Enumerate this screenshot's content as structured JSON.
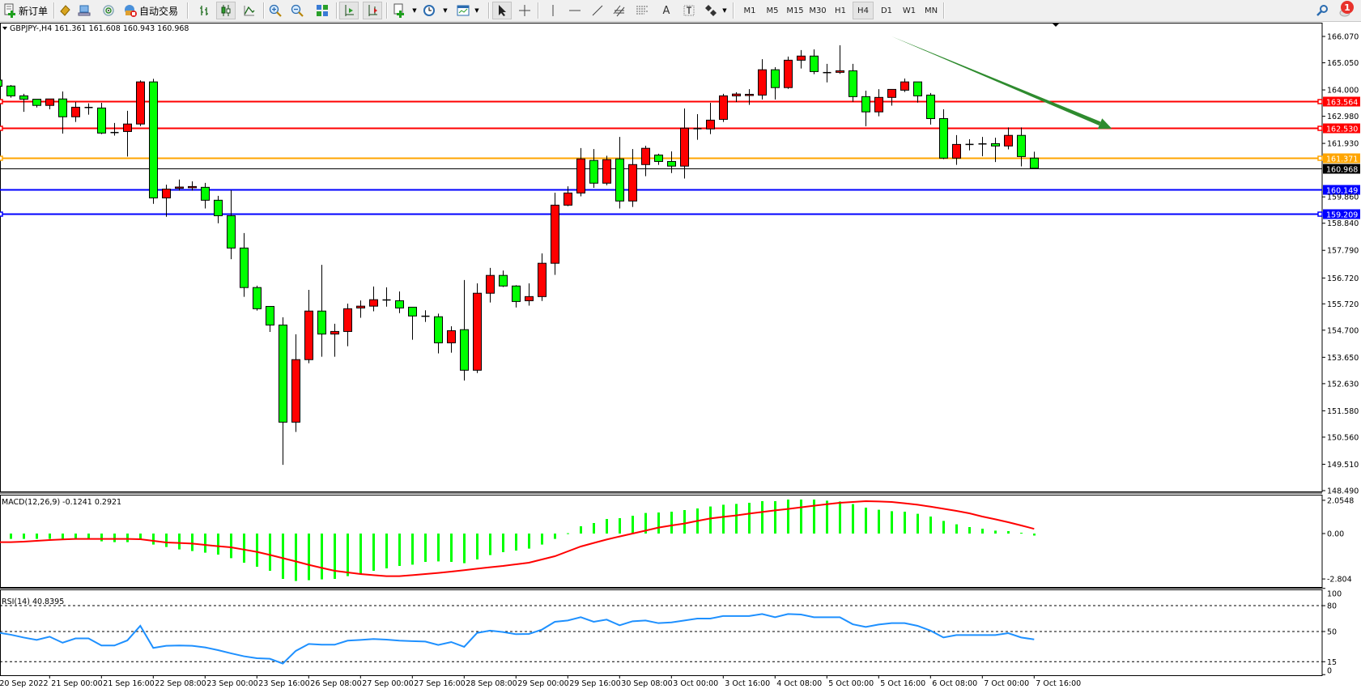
{
  "toolbar": {
    "new_order_label": "新订单",
    "autotrade_label": "自动交易",
    "icons": [
      "new-order-icon",
      "market-watch-icon",
      "data-window-icon",
      "navigator-icon",
      "autotrade-icon",
      "bar-chart-icon",
      "candlestick-icon",
      "line-chart-icon",
      "zoom-in-icon",
      "zoom-out-icon",
      "tile-windows-icon",
      "auto-scroll-icon",
      "chart-shift-icon",
      "indicators-icon",
      "periods-icon",
      "templates-icon",
      "cursor-icon",
      "crosshair-icon",
      "vertical-line-icon",
      "horizontal-line-icon",
      "trendline-icon",
      "equidistant-channel-icon",
      "fibonacci-icon",
      "text-icon",
      "text-label-icon",
      "arrows-icon",
      "search-icon",
      "notification-icon"
    ],
    "timeframes": [
      "M1",
      "M5",
      "M15",
      "M30",
      "H1",
      "H4",
      "D1",
      "W1",
      "MN"
    ],
    "active_timeframe": "H4",
    "notification_count": "1"
  },
  "chart": {
    "header": "GBPJPY-,H4  161.361 161.608 160.943 160.968",
    "symbol": "GBPJPY-",
    "timeframe": "H4",
    "ohlc": {
      "open": "161.361",
      "high": "161.608",
      "low": "160.943",
      "close": "160.968"
    }
  },
  "chart_data": [
    {
      "type": "candlestick",
      "title": "GBPJPY-,H4",
      "ylim": [
        148.49,
        166.07
      ],
      "price_ticks": [
        "166.070",
        "165.050",
        "164.000",
        "162.980",
        "161.930",
        "159.860",
        "158.840",
        "157.790",
        "156.720",
        "155.720",
        "154.700",
        "153.650",
        "152.630",
        "151.580",
        "150.560",
        "149.510",
        "148.490"
      ],
      "up_color": "#ff0000",
      "down_color": "#00ff00",
      "candles_ohlc": [
        [
          164.38,
          164.45,
          164.1,
          164.14
        ],
        [
          164.15,
          164.19,
          163.7,
          163.77
        ],
        [
          163.77,
          163.85,
          163.15,
          163.64
        ],
        [
          163.64,
          163.64,
          163.32,
          163.4
        ],
        [
          163.4,
          163.65,
          163.25,
          163.65
        ],
        [
          163.65,
          163.94,
          162.31,
          162.96
        ],
        [
          162.96,
          163.53,
          162.76,
          163.33
        ],
        [
          163.32,
          163.48,
          163.04,
          163.32
        ],
        [
          163.3,
          163.5,
          162.29,
          162.33
        ],
        [
          162.35,
          162.72,
          162.23,
          162.35
        ],
        [
          162.39,
          163.19,
          161.42,
          162.68
        ],
        [
          162.68,
          164.37,
          162.6,
          164.31
        ],
        [
          164.31,
          164.43,
          159.59,
          159.82
        ],
        [
          159.82,
          160.33,
          159.09,
          160.16
        ],
        [
          160.22,
          160.53,
          160.1,
          160.24
        ],
        [
          160.24,
          160.46,
          160.1,
          160.26
        ],
        [
          160.23,
          160.4,
          159.41,
          159.73
        ],
        [
          159.73,
          159.9,
          158.84,
          159.13
        ],
        [
          159.13,
          160.12,
          157.45,
          157.88
        ],
        [
          157.88,
          158.46,
          155.99,
          156.35
        ],
        [
          156.35,
          156.42,
          155.46,
          155.53
        ],
        [
          155.62,
          155.62,
          154.63,
          154.9
        ],
        [
          154.9,
          155.2,
          149.49,
          151.14
        ],
        [
          151.14,
          154.54,
          150.76,
          153.56
        ],
        [
          153.56,
          156.26,
          153.42,
          155.44
        ],
        [
          155.44,
          157.23,
          153.67,
          154.55
        ],
        [
          154.55,
          154.95,
          153.67,
          154.65
        ],
        [
          154.65,
          155.73,
          154.08,
          155.53
        ],
        [
          155.56,
          155.85,
          155.18,
          155.63
        ],
        [
          155.63,
          156.39,
          155.43,
          155.88
        ],
        [
          155.87,
          156.36,
          155.61,
          155.87
        ],
        [
          155.84,
          156.2,
          155.36,
          155.56
        ],
        [
          155.59,
          155.59,
          154.33,
          155.25
        ],
        [
          155.24,
          155.47,
          155.02,
          155.24
        ],
        [
          155.22,
          155.34,
          153.8,
          154.21
        ],
        [
          154.21,
          154.85,
          153.83,
          154.68
        ],
        [
          154.72,
          156.64,
          152.75,
          153.15
        ],
        [
          153.15,
          156.51,
          153.04,
          156.13
        ],
        [
          156.13,
          157.11,
          155.77,
          156.82
        ],
        [
          156.82,
          157.01,
          156.37,
          156.41
        ],
        [
          156.41,
          156.44,
          155.58,
          155.81
        ],
        [
          155.84,
          156.51,
          155.65,
          156.0
        ],
        [
          156.0,
          157.67,
          155.83,
          157.29
        ],
        [
          157.29,
          160.02,
          156.84,
          159.54
        ],
        [
          159.54,
          160.27,
          159.5,
          160.01
        ],
        [
          160.01,
          161.75,
          159.88,
          161.33
        ],
        [
          161.27,
          161.71,
          160.21,
          160.39
        ],
        [
          160.39,
          161.45,
          160.31,
          161.3
        ],
        [
          161.33,
          162.18,
          159.41,
          159.7
        ],
        [
          159.7,
          161.71,
          159.47,
          161.11
        ],
        [
          161.11,
          161.84,
          160.66,
          161.74
        ],
        [
          161.48,
          161.53,
          161.1,
          161.23
        ],
        [
          161.23,
          161.62,
          160.78,
          161.05
        ],
        [
          161.05,
          163.28,
          160.57,
          162.52
        ],
        [
          162.5,
          163.06,
          162.07,
          162.5
        ],
        [
          162.49,
          163.5,
          162.29,
          162.83
        ],
        [
          162.86,
          163.85,
          162.76,
          163.77
        ],
        [
          163.77,
          163.91,
          163.53,
          163.84
        ],
        [
          163.82,
          164.03,
          163.42,
          163.83
        ],
        [
          163.8,
          165.19,
          163.63,
          164.78
        ],
        [
          164.78,
          164.88,
          163.63,
          164.09
        ],
        [
          164.09,
          165.29,
          164.04,
          165.15
        ],
        [
          165.15,
          165.54,
          164.83,
          165.31
        ],
        [
          165.31,
          165.57,
          164.61,
          164.71
        ],
        [
          164.67,
          165.01,
          164.29,
          164.67
        ],
        [
          164.68,
          165.73,
          164.62,
          164.74
        ],
        [
          164.74,
          165.01,
          163.54,
          163.74
        ],
        [
          163.74,
          163.97,
          162.59,
          163.15
        ],
        [
          163.15,
          164.03,
          162.98,
          163.71
        ],
        [
          163.71,
          164.02,
          163.39,
          164.02
        ],
        [
          163.99,
          164.44,
          163.92,
          164.31
        ],
        [
          164.31,
          164.31,
          163.51,
          163.77
        ],
        [
          163.8,
          163.88,
          162.66,
          162.89
        ],
        [
          162.89,
          163.25,
          161.32,
          161.36
        ],
        [
          161.36,
          162.25,
          161.1,
          161.89
        ],
        [
          161.89,
          162.09,
          161.66,
          161.89
        ],
        [
          161.91,
          162.18,
          161.43,
          161.91
        ],
        [
          161.92,
          162.15,
          161.21,
          161.83
        ],
        [
          161.83,
          162.55,
          161.7,
          162.24
        ],
        [
          162.24,
          162.55,
          161.04,
          161.42
        ],
        [
          161.361,
          161.608,
          160.943,
          160.968
        ]
      ],
      "levels": [
        {
          "price": 163.564,
          "label": "163.564",
          "color": "#ff0000",
          "marker": true
        },
        {
          "price": 162.53,
          "label": "162.530",
          "color": "#ff0000",
          "marker": true
        },
        {
          "price": 161.371,
          "label": "161.371",
          "color": "#ffa500",
          "marker": true
        },
        {
          "price": 160.968,
          "label": "160.968",
          "color": "#000000",
          "marker": false,
          "bid_line": true
        },
        {
          "price": 160.149,
          "label": "160.149",
          "color": "#0000ff",
          "marker": false
        },
        {
          "price": 159.209,
          "label": "159.209",
          "color": "#0000ff",
          "marker": true
        }
      ],
      "trend_arrow": {
        "color": "#2e8b2e",
        "direction": "down",
        "from_bar": 69,
        "from_price": 166.07,
        "to_bar": 86,
        "to_price": 162.5
      },
      "time_labels": [
        {
          "bar": 0,
          "text": "20 Sep 2022"
        },
        {
          "bar": 4,
          "text": "21 Sep 00:00"
        },
        {
          "bar": 8,
          "text": "21 Sep 16:00"
        },
        {
          "bar": 12,
          "text": "22 Sep 08:00"
        },
        {
          "bar": 16,
          "text": "23 Sep 00:00"
        },
        {
          "bar": 20,
          "text": "23 Sep 16:00"
        },
        {
          "bar": 24,
          "text": "26 Sep 08:00"
        },
        {
          "bar": 28,
          "text": "27 Sep 00:00"
        },
        {
          "bar": 32,
          "text": "27 Sep 16:00"
        },
        {
          "bar": 36,
          "text": "28 Sep 08:00"
        },
        {
          "bar": 40,
          "text": "29 Sep 00:00"
        },
        {
          "bar": 44,
          "text": "29 Sep 16:00"
        },
        {
          "bar": 48,
          "text": "30 Sep 08:00"
        },
        {
          "bar": 52,
          "text": "3 Oct 00:00"
        },
        {
          "bar": 56,
          "text": "3 Oct 16:00"
        },
        {
          "bar": 60,
          "text": "4 Oct 08:00"
        },
        {
          "bar": 64,
          "text": "5 Oct 00:00"
        },
        {
          "bar": 68,
          "text": "5 Oct 16:00"
        },
        {
          "bar": 72,
          "text": "6 Oct 08:00"
        },
        {
          "bar": 76,
          "text": "7 Oct 00:00"
        },
        {
          "bar": 80,
          "text": "7 Oct 16:00"
        }
      ]
    },
    {
      "type": "bar+line",
      "title": "MACD(12,26,9) -0.1241 0.2921",
      "params": "12,26,9",
      "main_value": "-0.1241",
      "signal_value": "0.2921",
      "ylim": [
        -2.804,
        2.0548
      ],
      "ticks": [
        "2.0548",
        "0.00",
        "-2.804"
      ],
      "hist_color": "#00ff00",
      "signal_color": "#ff0000",
      "histogram": [
        -0.33,
        -0.33,
        -0.33,
        -0.33,
        -0.33,
        -0.33,
        -0.33,
        -0.33,
        -0.48,
        -0.53,
        -0.53,
        -0.4,
        -0.68,
        -0.83,
        -0.98,
        -1.08,
        -1.18,
        -1.3,
        -1.52,
        -1.8,
        -2.05,
        -2.3,
        -2.8,
        -2.93,
        -2.88,
        -2.83,
        -2.8,
        -2.63,
        -2.48,
        -2.3,
        -2.15,
        -2.0,
        -1.92,
        -1.75,
        -1.72,
        -1.75,
        -1.83,
        -1.6,
        -1.33,
        -1.15,
        -1.05,
        -0.93,
        -0.68,
        -0.33,
        0.02,
        0.45,
        0.65,
        0.9,
        0.95,
        1.1,
        1.27,
        1.3,
        1.35,
        1.45,
        1.55,
        1.67,
        1.78,
        1.83,
        1.9,
        2.0,
        2.0,
        2.1,
        2.1,
        2.1,
        2.03,
        1.98,
        1.82,
        1.6,
        1.47,
        1.38,
        1.35,
        1.22,
        1.05,
        0.78,
        0.57,
        0.4,
        0.3,
        0.18,
        0.15,
        0.05,
        -0.1241
      ],
      "signal": [
        -0.53,
        -0.53,
        -0.5,
        -0.45,
        -0.4,
        -0.36,
        -0.33,
        -0.33,
        -0.33,
        -0.33,
        -0.33,
        -0.35,
        -0.45,
        -0.55,
        -0.58,
        -0.62,
        -0.7,
        -0.78,
        -0.85,
        -0.99,
        -1.13,
        -1.32,
        -1.52,
        -1.72,
        -1.93,
        -2.12,
        -2.3,
        -2.4,
        -2.5,
        -2.57,
        -2.63,
        -2.63,
        -2.57,
        -2.5,
        -2.43,
        -2.35,
        -2.26,
        -2.17,
        -2.08,
        -2.0,
        -1.9,
        -1.8,
        -1.6,
        -1.4,
        -1.1,
        -0.8,
        -0.58,
        -0.37,
        -0.18,
        0,
        0.18,
        0.37,
        0.5,
        0.62,
        0.78,
        0.93,
        1.03,
        1.12,
        1.23,
        1.33,
        1.43,
        1.52,
        1.62,
        1.72,
        1.81,
        1.9,
        1.95,
        2.0,
        1.98,
        1.95,
        1.87,
        1.78,
        1.66,
        1.53,
        1.4,
        1.25,
        1.05,
        0.88,
        0.7,
        0.5,
        0.2921
      ]
    },
    {
      "type": "line",
      "title": "RSI(14) 40.8395",
      "period": "14",
      "value": "40.8395",
      "ylim": [
        0,
        100
      ],
      "ticks": [
        "100",
        "80",
        "50",
        "15",
        "0"
      ],
      "levels": [
        80,
        50,
        15
      ],
      "line_color": "#1e90ff",
      "values": [
        48.8,
        46.3,
        43,
        40.3,
        44,
        37,
        42,
        42,
        33.8,
        33.8,
        39.7,
        56.6,
        31,
        33.4,
        33.8,
        33.4,
        31.6,
        28.4,
        24.7,
        21.3,
        19,
        18.4,
        12.8,
        27.5,
        35.6,
        34.7,
        34.7,
        39.4,
        40.3,
        41.3,
        40.6,
        39.4,
        38.8,
        38.4,
        34.4,
        37.8,
        32.2,
        48.4,
        51,
        49.4,
        46.9,
        47.2,
        52.2,
        61.3,
        62.8,
        66.6,
        61.3,
        63.8,
        57.2,
        61.9,
        62.8,
        59.7,
        60.6,
        62.8,
        65,
        65,
        68,
        68,
        68,
        70.3,
        66.6,
        70.3,
        69.7,
        66.6,
        66.6,
        66.6,
        58.4,
        55.3,
        58.1,
        59.7,
        59.7,
        56.6,
        51,
        43.1,
        45.9,
        45.9,
        45.9,
        45.9,
        48.1,
        43.1,
        40.8395
      ]
    }
  ]
}
